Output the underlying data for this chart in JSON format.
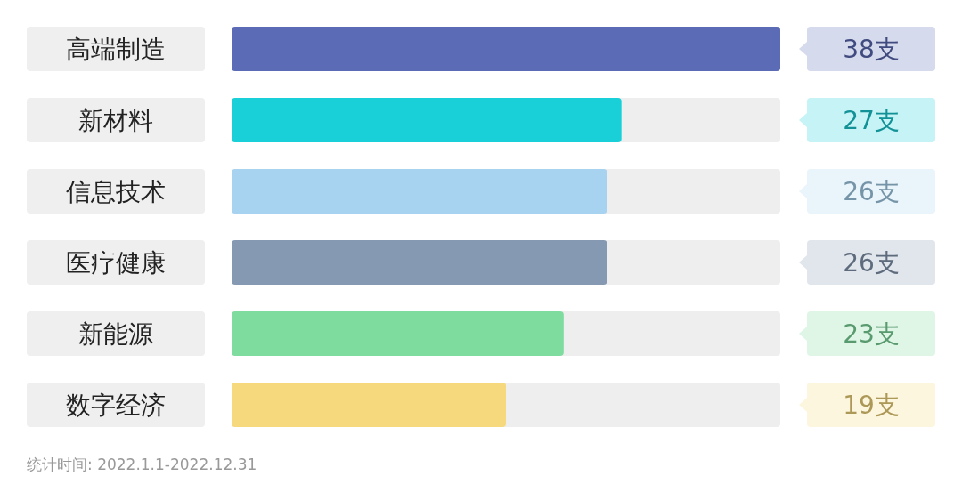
{
  "chart_data": {
    "type": "bar",
    "orientation": "horizontal",
    "categories": [
      "高端制造",
      "新材料",
      "信息技术",
      "医疗健康",
      "新能源",
      "数字经济"
    ],
    "values": [
      38,
      27,
      26,
      26,
      23,
      19
    ],
    "value_labels": [
      "38支",
      "27支",
      "26支",
      "26支",
      "23支",
      "19支"
    ],
    "colors": [
      "#5b6bb5",
      "#19d0d8",
      "#a7d3f0",
      "#8599b3",
      "#7fdc9f",
      "#f6d97c"
    ],
    "annotations": [
      "统计时间: 2022.1.1-2022.12.31"
    ]
  }
}
